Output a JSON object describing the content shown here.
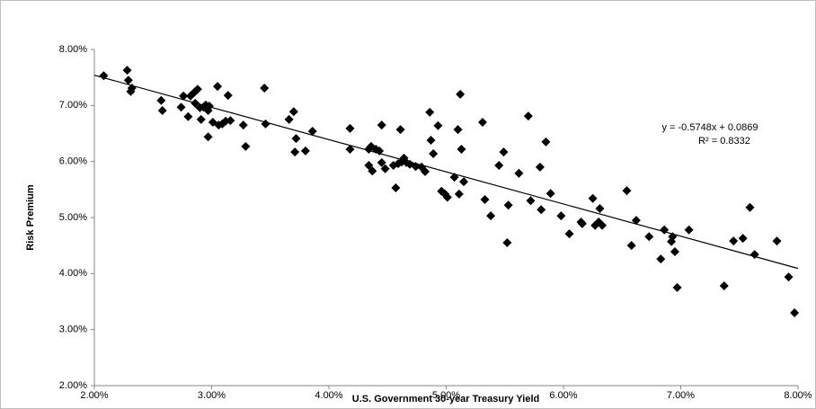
{
  "chart_data": {
    "type": "scatter",
    "x_label": "U.S. Government 30-year Treasury Yield",
    "y_label": "Risk Premium",
    "color": "#000000",
    "xlim": [
      2,
      8
    ],
    "ylim": [
      2,
      8
    ],
    "xticks": [
      {
        "value": 2,
        "label": "2.00%"
      },
      {
        "value": 3,
        "label": "3.00%"
      },
      {
        "value": 4,
        "label": "4.00%"
      },
      {
        "value": 5,
        "label": "5.00%"
      },
      {
        "value": 6,
        "label": "6.00%"
      },
      {
        "value": 7,
        "label": "7.00%"
      },
      {
        "value": 8,
        "label": "8.00%"
      }
    ],
    "yticks": [
      {
        "value": 2,
        "label": "2.00%"
      },
      {
        "value": 3,
        "label": "3.00%"
      },
      {
        "value": 4,
        "label": "4.00%"
      },
      {
        "value": 5,
        "label": "5.00%"
      },
      {
        "value": 6,
        "label": "6.00%"
      },
      {
        "value": 7,
        "label": "7.00%"
      },
      {
        "value": 8,
        "label": "8.00%"
      }
    ],
    "grid": false,
    "trendline": {
      "equation": "y = -0.5748x + 0.0869",
      "r_squared": "R² = 0.8332"
    },
    "x": [
      2.08,
      2.28,
      2.29,
      2.31,
      2.32,
      2.57,
      2.58,
      2.74,
      2.76,
      2.8,
      2.82,
      2.85,
      2.86,
      2.88,
      2.9,
      2.91,
      2.93,
      2.95,
      2.97,
      2.98,
      2.97,
      3.01,
      3.05,
      3.06,
      3.09,
      3.12,
      3.14,
      3.16,
      3.27,
      3.29,
      3.45,
      3.46,
      3.66,
      3.7,
      3.71,
      3.72,
      3.8,
      3.86,
      4.18,
      4.18,
      4.34,
      4.34,
      4.36,
      4.37,
      4.4,
      4.43,
      4.45,
      4.45,
      4.48,
      4.55,
      4.57,
      4.59,
      4.61,
      4.62,
      4.64,
      4.66,
      4.69,
      4.74,
      4.79,
      4.82,
      4.86,
      4.87,
      4.89,
      4.93,
      4.96,
      4.99,
      5.01,
      5.07,
      5.1,
      5.12,
      5.11,
      5.13,
      5.15,
      5.31,
      5.33,
      5.38,
      5.45,
      5.49,
      5.53,
      5.52,
      5.62,
      5.7,
      5.72,
      5.8,
      5.81,
      5.85,
      5.89,
      5.98,
      6.05,
      6.15,
      6.16,
      6.25,
      6.27,
      6.3,
      6.31,
      6.33,
      6.54,
      6.58,
      6.62,
      6.73,
      6.83,
      6.86,
      6.92,
      6.93,
      6.95,
      6.97,
      7.07,
      7.37,
      7.45,
      7.53,
      7.59,
      7.63,
      7.82,
      7.92,
      7.97
    ],
    "values": [
      7.53,
      7.63,
      7.45,
      7.25,
      7.31,
      7.09,
      6.91,
      6.97,
      7.17,
      6.8,
      7.17,
      7.23,
      7.04,
      7.29,
      6.96,
      6.75,
      6.97,
      7.01,
      6.91,
      6.99,
      6.44,
      6.7,
      7.34,
      6.65,
      6.67,
      6.72,
      7.18,
      6.73,
      6.65,
      6.27,
      7.31,
      6.67,
      6.75,
      6.89,
      6.17,
      6.41,
      6.19,
      6.54,
      6.59,
      6.22,
      6.22,
      5.93,
      6.27,
      5.83,
      6.22,
      6.19,
      6.65,
      5.98,
      5.87,
      5.93,
      5.53,
      5.96,
      6.57,
      5.99,
      6.06,
      5.98,
      5.95,
      5.91,
      5.9,
      5.82,
      6.88,
      6.38,
      6.14,
      6.64,
      5.47,
      5.42,
      5.36,
      5.72,
      6.57,
      7.2,
      5.42,
      6.22,
      5.64,
      6.7,
      5.32,
      5.03,
      5.93,
      6.17,
      5.22,
      4.55,
      5.79,
      6.81,
      5.3,
      5.9,
      5.14,
      6.35,
      5.43,
      5.03,
      4.71,
      4.92,
      4.89,
      5.34,
      4.86,
      4.92,
      5.16,
      4.86,
      5.48,
      4.5,
      4.95,
      4.66,
      4.26,
      4.78,
      4.57,
      4.66,
      4.39,
      3.75,
      4.78,
      3.78,
      4.58,
      4.63,
      5.18,
      4.34,
      4.58,
      3.94,
      3.3
    ]
  }
}
